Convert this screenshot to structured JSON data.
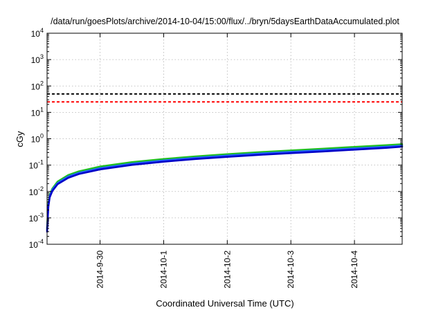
{
  "chart_data": {
    "type": "line",
    "title": "/data/run/goesPlots/archive/2014-10-04/15:00/flux/../bryn/5daysEarthDataAccumulated.plot",
    "xlabel": "Coordinated Universal Time (UTC)",
    "ylabel": "cGy",
    "x_scale": "time",
    "y_scale": "log",
    "xlim": [
      "2014-09-29T04:00",
      "2014-10-04T18:00"
    ],
    "ylim": [
      0.0001,
      10000
    ],
    "grid": true,
    "x_ticks": [
      "2014-9-30",
      "2014-10-1",
      "2014-10-2",
      "2014-10-3",
      "2014-10-4"
    ],
    "y_ticks": [
      {
        "base": "10",
        "exp": "-4"
      },
      {
        "base": "10",
        "exp": "-3"
      },
      {
        "base": "10",
        "exp": "-2"
      },
      {
        "base": "10",
        "exp": "-1"
      },
      {
        "base": "10",
        "exp": "0"
      },
      {
        "base": "10",
        "exp": "1"
      },
      {
        "base": "10",
        "exp": "2"
      },
      {
        "base": "10",
        "exp": "3"
      },
      {
        "base": "10",
        "exp": "4"
      }
    ],
    "thresholds": [
      {
        "y": 50,
        "color": "#000000",
        "style": "dashed"
      },
      {
        "y": 25,
        "color": "#ff0000",
        "style": "dashed"
      }
    ],
    "series": [
      {
        "color": "#20c020",
        "x": [
          "2014-09-29T04:00",
          "2014-09-29T04:30",
          "2014-09-29T05:00",
          "2014-09-29T06:00",
          "2014-09-29T08:00",
          "2014-09-29T12:00",
          "2014-09-29T16:00",
          "2014-09-30T00:00",
          "2014-09-30T12:00",
          "2014-10-01T00:00",
          "2014-10-01T12:00",
          "2014-10-02T00:00",
          "2014-10-02T12:00",
          "2014-10-03T00:00",
          "2014-10-03T12:00",
          "2014-10-04T00:00",
          "2014-10-04T12:00",
          "2014-10-04T18:00"
        ],
        "y": [
          0.0004,
          0.0035,
          0.0075,
          0.013,
          0.024,
          0.042,
          0.058,
          0.088,
          0.13,
          0.17,
          0.215,
          0.26,
          0.31,
          0.36,
          0.42,
          0.49,
          0.57,
          0.62
        ]
      },
      {
        "color": "#2060ff",
        "x": [
          "2014-09-29T04:00",
          "2014-09-29T04:30",
          "2014-09-29T05:00",
          "2014-09-29T06:00",
          "2014-09-29T08:00",
          "2014-09-29T12:00",
          "2014-09-29T16:00",
          "2014-09-30T00:00",
          "2014-09-30T12:00",
          "2014-10-01T00:00",
          "2014-10-01T12:00",
          "2014-10-02T00:00",
          "2014-10-02T12:00",
          "2014-10-03T00:00",
          "2014-10-03T12:00",
          "2014-10-04T00:00",
          "2014-10-04T12:00",
          "2014-10-04T18:00"
        ],
        "y": [
          0.00035,
          0.003,
          0.0068,
          0.0118,
          0.021,
          0.037,
          0.051,
          0.077,
          0.114,
          0.15,
          0.19,
          0.23,
          0.275,
          0.32,
          0.37,
          0.43,
          0.5,
          0.55
        ]
      },
      {
        "color": "#0000c8",
        "x": [
          "2014-09-29T04:00",
          "2014-09-29T04:30",
          "2014-09-29T05:00",
          "2014-09-29T06:00",
          "2014-09-29T08:00",
          "2014-09-29T12:00",
          "2014-09-29T16:00",
          "2014-09-30T00:00",
          "2014-09-30T12:00",
          "2014-10-01T00:00",
          "2014-10-01T12:00",
          "2014-10-02T00:00",
          "2014-10-02T12:00",
          "2014-10-03T00:00",
          "2014-10-03T12:00",
          "2014-10-04T00:00",
          "2014-10-04T12:00",
          "2014-10-04T18:00"
        ],
        "y": [
          0.0003,
          0.0027,
          0.006,
          0.0105,
          0.019,
          0.033,
          0.046,
          0.069,
          0.102,
          0.135,
          0.17,
          0.205,
          0.245,
          0.285,
          0.33,
          0.385,
          0.45,
          0.5
        ]
      }
    ]
  }
}
